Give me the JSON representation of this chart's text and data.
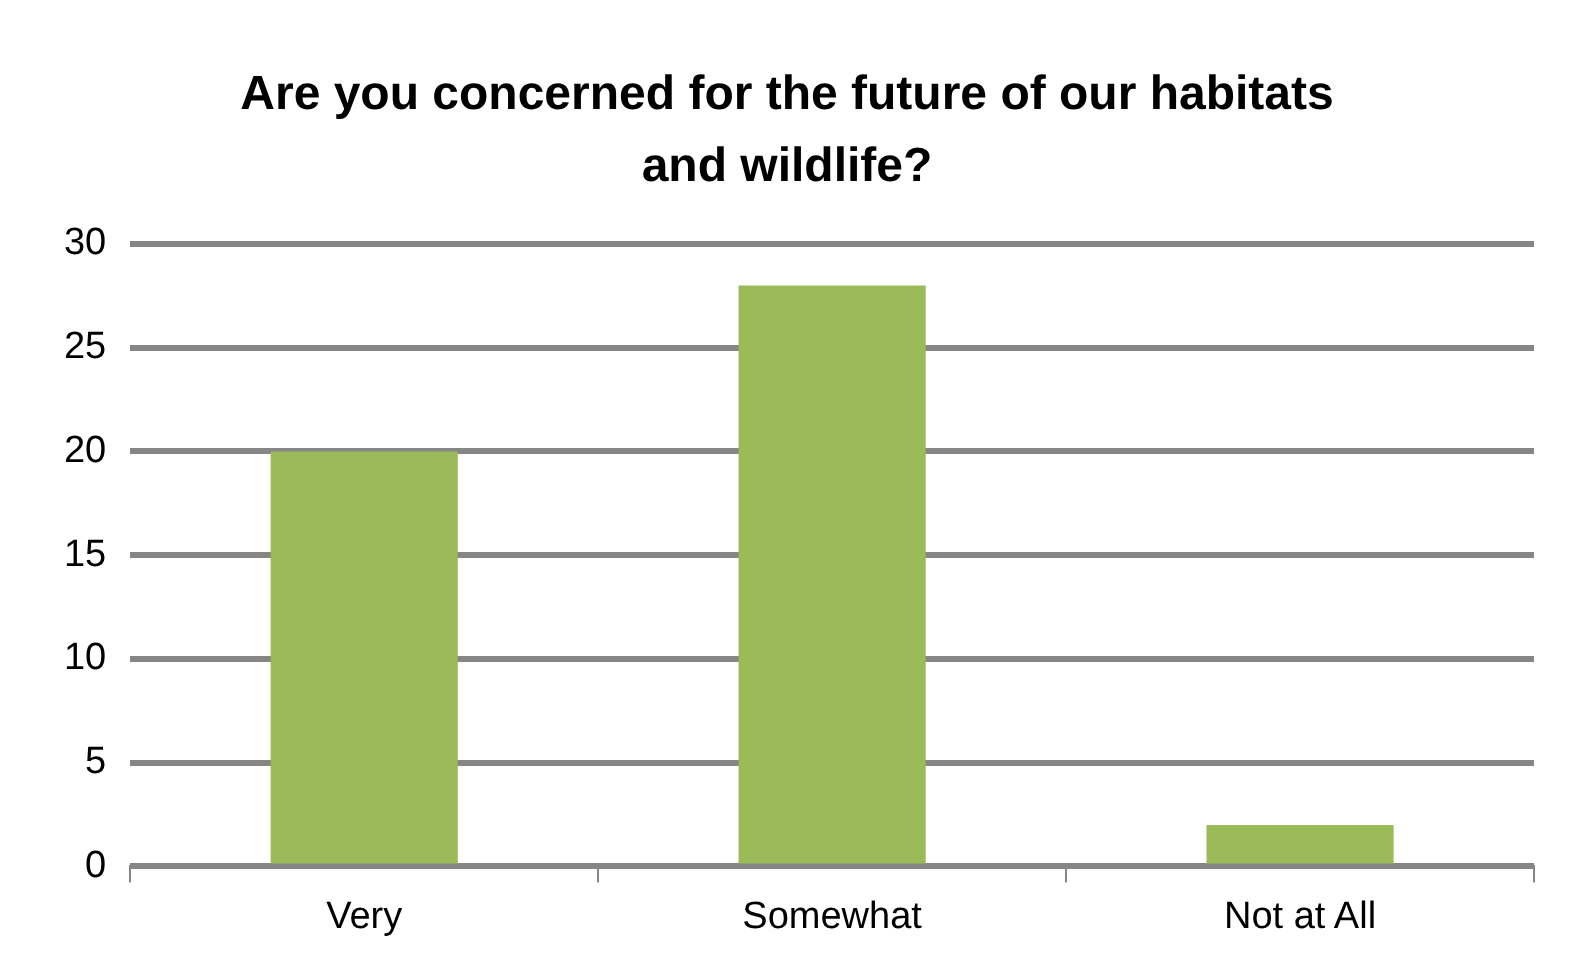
{
  "chart_data": {
    "type": "bar",
    "title": "Are you concerned for the future of our habitats and wildlife?",
    "categories": [
      "Very",
      "Somewhat",
      "Not at All"
    ],
    "values": [
      20,
      28,
      2
    ],
    "color": "#9bbb59",
    "ylim": [
      0,
      30
    ],
    "yticks": [
      0,
      5,
      10,
      15,
      20,
      25,
      30
    ],
    "grid": "y",
    "legend": false
  }
}
